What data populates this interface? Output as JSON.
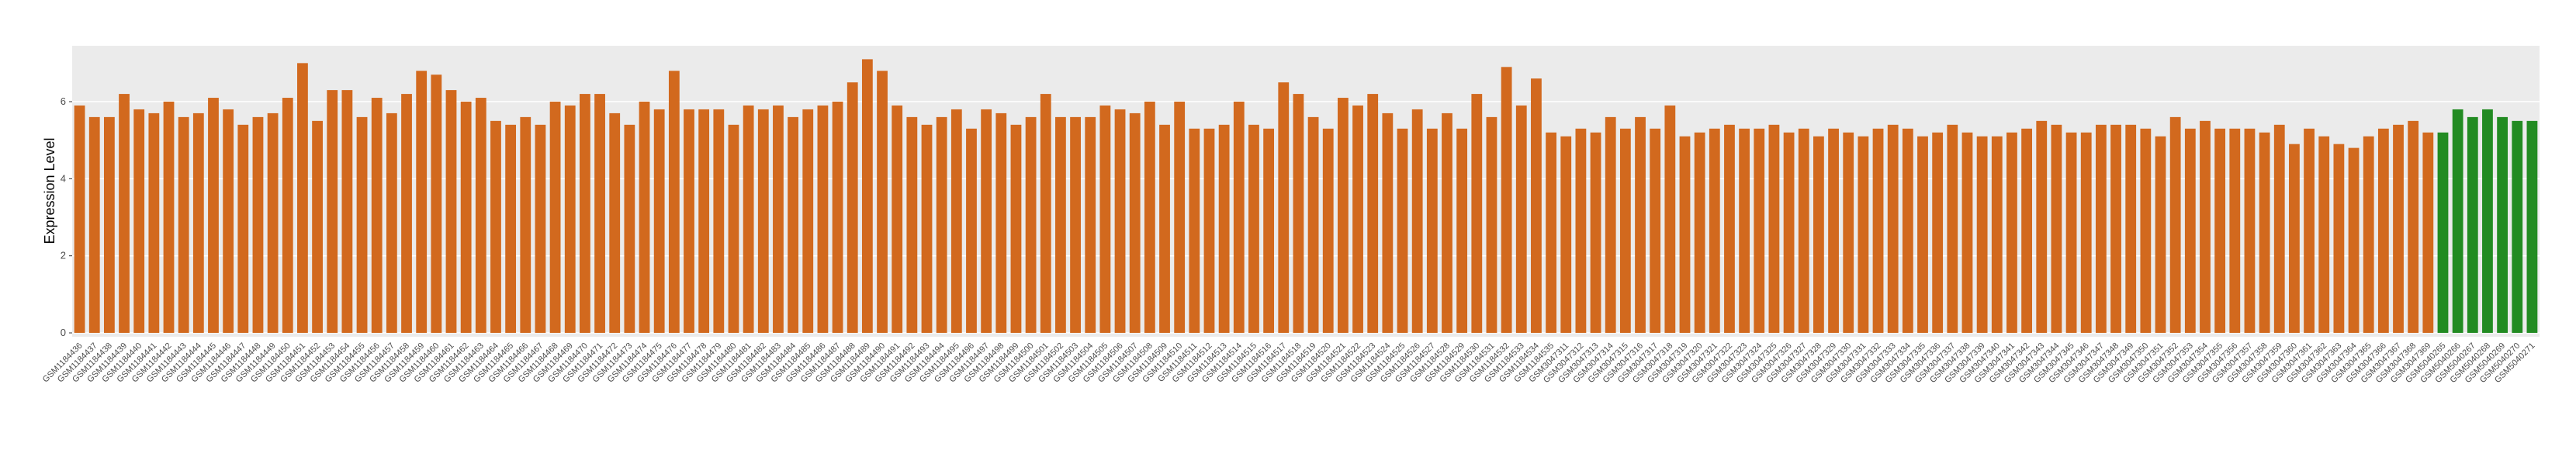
{
  "chart_data": {
    "type": "bar",
    "y_label": "Expression Level",
    "categories": [
      "GSM1184436",
      "GSM1184437",
      "GSM1184438",
      "GSM1184439",
      "GSM1184440",
      "GSM1184441",
      "GSM1184442",
      "GSM1184443",
      "GSM1184444",
      "GSM1184445",
      "GSM1184446",
      "GSM1184447",
      "GSM1184448",
      "GSM1184449",
      "GSM1184450",
      "GSM1184451",
      "GSM1184452",
      "GSM1184453",
      "GSM1184454",
      "GSM1184455",
      "GSM1184456",
      "GSM1184457",
      "GSM1184458",
      "GSM1184459",
      "GSM1184460",
      "GSM1184461",
      "GSM1184462",
      "GSM1184463",
      "GSM1184464",
      "GSM1184465",
      "GSM1184466",
      "GSM1184467",
      "GSM1184468",
      "GSM1184469",
      "GSM1184470",
      "GSM1184471",
      "GSM1184472",
      "GSM1184473",
      "GSM1184474",
      "GSM1184475",
      "GSM1184476",
      "GSM1184477",
      "GSM1184478",
      "GSM1184479",
      "GSM1184480",
      "GSM1184481",
      "GSM1184482",
      "GSM1184483",
      "GSM1184484",
      "GSM1184485",
      "GSM1184486",
      "GSM1184487",
      "GSM1184488",
      "GSM1184489",
      "GSM1184490",
      "GSM1184491",
      "GSM1184492",
      "GSM1184493",
      "GSM1184494",
      "GSM1184495",
      "GSM1184496",
      "GSM1184497",
      "GSM1184498",
      "GSM1184499",
      "GSM1184500",
      "GSM1184501",
      "GSM1184502",
      "GSM1184503",
      "GSM1184504",
      "GSM1184505",
      "GSM1184506",
      "GSM1184507",
      "GSM1184508",
      "GSM1184509",
      "GSM1184510",
      "GSM1184511",
      "GSM1184512",
      "GSM1184513",
      "GSM1184514",
      "GSM1184515",
      "GSM1184516",
      "GSM1184517",
      "GSM1184518",
      "GSM1184519",
      "GSM1184520",
      "GSM1184521",
      "GSM1184522",
      "GSM1184523",
      "GSM1184524",
      "GSM1184525",
      "GSM1184526",
      "GSM1184527",
      "GSM1184528",
      "GSM1184529",
      "GSM1184530",
      "GSM1184531",
      "GSM1184532",
      "GSM1184533",
      "GSM1184534",
      "GSM1184535",
      "GSM3047311",
      "GSM3047312",
      "GSM3047313",
      "GSM3047314",
      "GSM3047315",
      "GSM3047316",
      "GSM3047317",
      "GSM3047318",
      "GSM3047319",
      "GSM3047320",
      "GSM3047321",
      "GSM3047322",
      "GSM3047323",
      "GSM3047324",
      "GSM3047325",
      "GSM3047326",
      "GSM3047327",
      "GSM3047328",
      "GSM3047329",
      "GSM3047330",
      "GSM3047331",
      "GSM3047332",
      "GSM3047333",
      "GSM3047334",
      "GSM3047335",
      "GSM3047336",
      "GSM3047337",
      "GSM3047338",
      "GSM3047339",
      "GSM3047340",
      "GSM3047341",
      "GSM3047342",
      "GSM3047343",
      "GSM3047344",
      "GSM3047345",
      "GSM3047346",
      "GSM3047347",
      "GSM3047348",
      "GSM3047349",
      "GSM3047350",
      "GSM3047351",
      "GSM3047352",
      "GSM3047353",
      "GSM3047354",
      "GSM3047355",
      "GSM3047356",
      "GSM3047357",
      "GSM3047358",
      "GSM3047359",
      "GSM3047360",
      "GSM3047361",
      "GSM3047362",
      "GSM3047363",
      "GSM3047364",
      "GSM3047365",
      "GSM3047366",
      "GSM3047367",
      "GSM3047368",
      "GSM3047369",
      "GSM5040265",
      "GSM5040266",
      "GSM5040267",
      "GSM5040268",
      "GSM5040269",
      "GSM5040270",
      "GSM5040271"
    ],
    "values": [
      5.9,
      5.6,
      5.6,
      6.2,
      5.8,
      5.7,
      6.0,
      5.6,
      5.7,
      6.1,
      5.8,
      5.4,
      5.6,
      5.7,
      6.1,
      7.0,
      5.5,
      6.3,
      6.3,
      5.6,
      6.1,
      5.7,
      6.2,
      6.8,
      6.7,
      6.3,
      6.0,
      6.1,
      5.5,
      5.4,
      5.6,
      5.4,
      6.0,
      5.9,
      6.2,
      6.2,
      5.7,
      5.4,
      6.0,
      5.8,
      6.8,
      5.8,
      5.8,
      5.8,
      5.4,
      5.9,
      5.8,
      5.9,
      5.6,
      5.8,
      5.9,
      6.0,
      6.5,
      7.1,
      6.8,
      5.9,
      5.6,
      5.4,
      5.6,
      5.8,
      5.3,
      5.8,
      5.7,
      5.4,
      5.6,
      6.2,
      5.6,
      5.6,
      5.6,
      5.9,
      5.8,
      5.7,
      6.0,
      5.4,
      6.0,
      5.3,
      5.3,
      5.4,
      6.0,
      5.4,
      5.3,
      6.5,
      6.2,
      5.6,
      5.3,
      6.1,
      5.9,
      6.2,
      5.7,
      5.3,
      5.8,
      5.3,
      5.7,
      5.3,
      6.2,
      5.6,
      6.9,
      5.9,
      6.6,
      5.2,
      5.1,
      5.3,
      5.2,
      5.6,
      5.3,
      5.6,
      5.3,
      5.9,
      5.1,
      5.2,
      5.3,
      5.4,
      5.3,
      5.3,
      5.4,
      5.2,
      5.3,
      5.1,
      5.3,
      5.2,
      5.1,
      5.3,
      5.4,
      5.3,
      5.1,
      5.2,
      5.4,
      5.2,
      5.1,
      5.1,
      5.2,
      5.3,
      5.5,
      5.4,
      5.2,
      5.2,
      5.4,
      5.4,
      5.4,
      5.3,
      5.1,
      5.6,
      5.3,
      5.5,
      5.3,
      5.3,
      5.3,
      5.2,
      5.4,
      4.9,
      5.3,
      5.1,
      4.9,
      4.8,
      5.1,
      5.3,
      5.4,
      5.5,
      5.2,
      5.2,
      5.8,
      5.6,
      5.8,
      5.6,
      5.5,
      5.5
    ],
    "color": "#d2691e",
    "highlight_color": "#228b22",
    "highlight_from": "GSM5040265",
    "ylim": [
      -0.1,
      7.45
    ],
    "yticks": [
      0,
      2,
      4,
      6
    ],
    "grid": true
  }
}
